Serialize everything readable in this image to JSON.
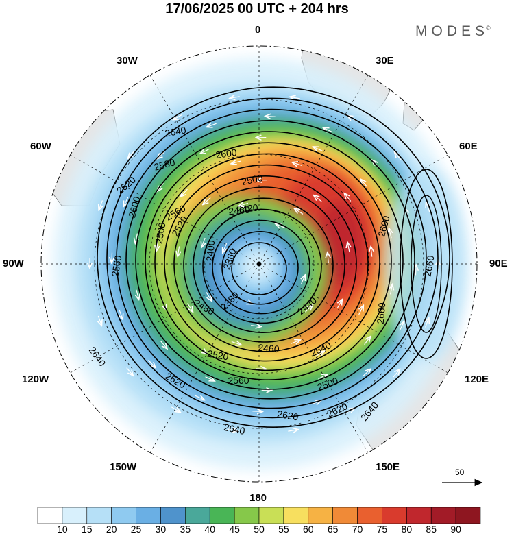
{
  "header": {
    "title": "17/06/2025  00 UTC  + 204 hrs",
    "brand": "MODES",
    "brand_mark": "©"
  },
  "map": {
    "projection": "south-polar-stereographic",
    "longitude_labels": {
      "lon_0": "0",
      "lon_30e": "30E",
      "lon_60e": "60E",
      "lon_90e": "90E",
      "lon_120e": "120E",
      "lon_150e": "150E",
      "lon_180": "180",
      "lon_150w": "150W",
      "lon_120w": "120W",
      "lon_90w": "90W",
      "lon_60w": "60W",
      "lon_30w": "30W"
    },
    "contour_labels": [
      "2640",
      "2600",
      "2580",
      "2500",
      "2620",
      "2600",
      "2560",
      "2520",
      "2500",
      "2420",
      "2400",
      "2460",
      "2360",
      "2380",
      "2480",
      "2440",
      "2460",
      "2520",
      "2540",
      "2560",
      "2500",
      "2620",
      "2620",
      "2640",
      "2640",
      "2620",
      "2560",
      "2640",
      "2660",
      "2660",
      "2600"
    ],
    "colors": {
      "continent": "#e6e6e6",
      "contour": "#000000",
      "wind_arrow": "#ffffff"
    }
  },
  "colorbar": {
    "ticks": [
      "10",
      "15",
      "20",
      "25",
      "30",
      "35",
      "40",
      "45",
      "50",
      "55",
      "60",
      "65",
      "70",
      "75",
      "80",
      "85",
      "90"
    ],
    "colors": [
      "#ffffff",
      "#d8f0fc",
      "#b6e0f7",
      "#8fcaf0",
      "#6aafe4",
      "#4f93cc",
      "#4aa89a",
      "#49b556",
      "#86c84a",
      "#c9df56",
      "#f7df5f",
      "#f6b244",
      "#f08a37",
      "#e9602f",
      "#d93b2d",
      "#c0272d",
      "#a21b27",
      "#8e1620"
    ]
  },
  "reference_vector": {
    "label": "50"
  }
}
